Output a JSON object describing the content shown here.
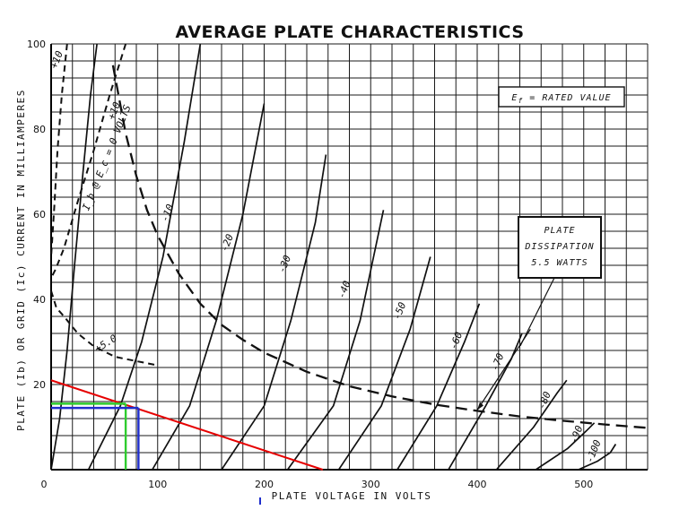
{
  "chart_data": {
    "type": "line",
    "title": "AVERAGE PLATE CHARACTERISTICS",
    "xlabel": "PLATE VOLTAGE IN VOLTS",
    "ylabel": "PLATE (Ib) OR GRID (Ic) CURRENT IN MILLIAMPERES",
    "xlim": [
      0,
      560
    ],
    "ylim": [
      0,
      100
    ],
    "x_ticks": [
      0,
      100,
      200,
      300,
      400,
      500
    ],
    "y_ticks": [
      20,
      40,
      60,
      80,
      100
    ],
    "grid": true,
    "plate_series": [
      {
        "name": "Ib @ Ec = 0 VOLTS",
        "label_text": "I_b @ E_c = 0 VOLTS",
        "label_pos": [
          55,
          73
        ],
        "points": [
          [
            0,
            0
          ],
          [
            8,
            12
          ],
          [
            15,
            28
          ],
          [
            22,
            48
          ],
          [
            30,
            70
          ],
          [
            37,
            88
          ],
          [
            43,
            100
          ]
        ]
      },
      {
        "name": "-10",
        "label_text": "-10",
        "label_pos": [
          112,
          60
        ],
        "points": [
          [
            35,
            0
          ],
          [
            65,
            15
          ],
          [
            85,
            30
          ],
          [
            105,
            50
          ],
          [
            125,
            77
          ],
          [
            140,
            100
          ]
        ]
      },
      {
        "name": "-20",
        "label_text": "-20",
        "label_pos": [
          168,
          53
        ],
        "points": [
          [
            95,
            0
          ],
          [
            130,
            15
          ],
          [
            155,
            35
          ],
          [
            180,
            60
          ],
          [
            200,
            86
          ]
        ]
      },
      {
        "name": "-30",
        "label_text": "-30",
        "label_pos": [
          222,
          48
        ],
        "points": [
          [
            160,
            0
          ],
          [
            200,
            15
          ],
          [
            225,
            35
          ],
          [
            248,
            58
          ],
          [
            258,
            74
          ]
        ]
      },
      {
        "name": "-40",
        "label_text": "-40",
        "label_pos": [
          278,
          42
        ],
        "points": [
          [
            222,
            0
          ],
          [
            265,
            15
          ],
          [
            290,
            35
          ],
          [
            312,
            61
          ]
        ]
      },
      {
        "name": "-50",
        "label_text": "-50",
        "label_pos": [
          330,
          37
        ],
        "points": [
          [
            270,
            0
          ],
          [
            310,
            15
          ],
          [
            337,
            33
          ],
          [
            356,
            50
          ]
        ]
      },
      {
        "name": "-60",
        "label_text": "-60",
        "label_pos": [
          383,
          30
        ],
        "points": [
          [
            325,
            0
          ],
          [
            362,
            15
          ],
          [
            388,
            30
          ],
          [
            402,
            39
          ]
        ]
      },
      {
        "name": "-70",
        "label_text": "-70",
        "label_pos": [
          422,
          25
        ],
        "points": [
          [
            373,
            0
          ],
          [
            408,
            15
          ],
          [
            432,
            26
          ],
          [
            442,
            32
          ]
        ]
      },
      {
        "name": "-80",
        "label_text": "-80",
        "label_pos": [
          466,
          16
        ],
        "points": [
          [
            418,
            0
          ],
          [
            453,
            10
          ],
          [
            475,
            18
          ],
          [
            484,
            21
          ]
        ]
      },
      {
        "name": "-90",
        "label_text": "-90",
        "label_pos": [
          496,
          8
        ],
        "points": [
          [
            455,
            0
          ],
          [
            485,
            5
          ],
          [
            502,
            9
          ],
          [
            510,
            11
          ]
        ]
      },
      {
        "name": "-100",
        "label_text": "-100",
        "label_pos": [
          512,
          4
        ],
        "points": [
          [
            495,
            0
          ],
          [
            513,
            2
          ],
          [
            525,
            4
          ],
          [
            530,
            6
          ]
        ]
      }
    ],
    "grid_current_series": [
      {
        "name": "Ic @ Ec = +10",
        "label_text": "+10",
        "label_pos": [
          8,
          96
        ],
        "points": [
          [
            15,
            100
          ],
          [
            10,
            88
          ],
          [
            6,
            75
          ],
          [
            3,
            62
          ],
          [
            1,
            54
          ],
          [
            0,
            50
          ]
        ]
      },
      {
        "name": "Ic @ Ec = +10 VOLTS",
        "label_text": "+10",
        "label_pos": [
          62,
          84
        ],
        "points": [
          [
            70,
            100
          ],
          [
            55,
            88
          ],
          [
            40,
            75
          ],
          [
            25,
            63
          ],
          [
            12,
            52
          ],
          [
            4,
            47
          ],
          [
            0,
            45
          ]
        ]
      },
      {
        "name": "Ic @ Ec = +5.0",
        "label_text": "+5.0",
        "label_pos": [
          53,
          29
        ],
        "points": [
          [
            0,
            42
          ],
          [
            5,
            38
          ],
          [
            12,
            36
          ],
          [
            25,
            32
          ],
          [
            40,
            29
          ],
          [
            60,
            26.5
          ],
          [
            80,
            25.5
          ],
          [
            100,
            24.5
          ]
        ]
      }
    ],
    "dissipation_curve": {
      "name": "5.5 W plate dissipation",
      "points": [
        [
          58,
          95
        ],
        [
          70,
          79
        ],
        [
          80,
          69
        ],
        [
          90,
          61
        ],
        [
          100,
          55
        ],
        [
          120,
          46
        ],
        [
          140,
          39
        ],
        [
          160,
          34
        ],
        [
          180,
          30.5
        ],
        [
          200,
          27.5
        ],
        [
          240,
          23
        ],
        [
          280,
          19.6
        ],
        [
          320,
          17.2
        ],
        [
          360,
          15.3
        ],
        [
          400,
          13.8
        ],
        [
          440,
          12.5
        ],
        [
          480,
          11.5
        ],
        [
          520,
          10.6
        ],
        [
          560,
          9.8
        ]
      ]
    },
    "load_line": {
      "points": [
        [
          0,
          21
        ],
        [
          255,
          0
        ]
      ],
      "color": "#e60000"
    },
    "operating_point": {
      "x": 82,
      "y": 14.5,
      "color": "#1f2ecc"
    },
    "green_lines": {
      "x": 70,
      "y": 15.5,
      "color": "#2ecc2e"
    },
    "annotations": {
      "ef_box": "Ef = RATED VALUE",
      "ef_box_sym": "E",
      "ef_box_sub": "f",
      "ef_box_rest": " = RATED VALUE",
      "dissipation_box": [
        "PLATE",
        "DISSIPATION",
        "5.5 WATTS"
      ]
    },
    "colors": {
      "grid": "#1a1a1a",
      "curve": "#111111"
    }
  }
}
